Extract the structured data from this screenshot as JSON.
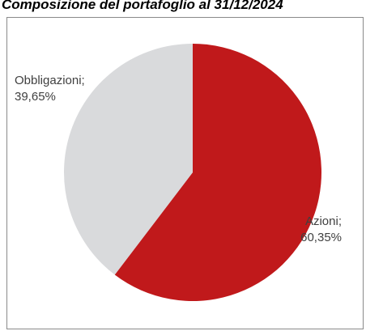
{
  "chart_data": {
    "type": "pie",
    "title": "Composizione del portafoglio al 31/12/2024",
    "slices": [
      {
        "label": "Azioni",
        "value": 60.35,
        "value_text": "60,35%",
        "color": "#c0191b"
      },
      {
        "label": "Obbligazioni",
        "value": 39.65,
        "value_text": "39,65%",
        "color": "#d9dadc"
      }
    ],
    "legend": "none",
    "data_labels": "outside"
  }
}
